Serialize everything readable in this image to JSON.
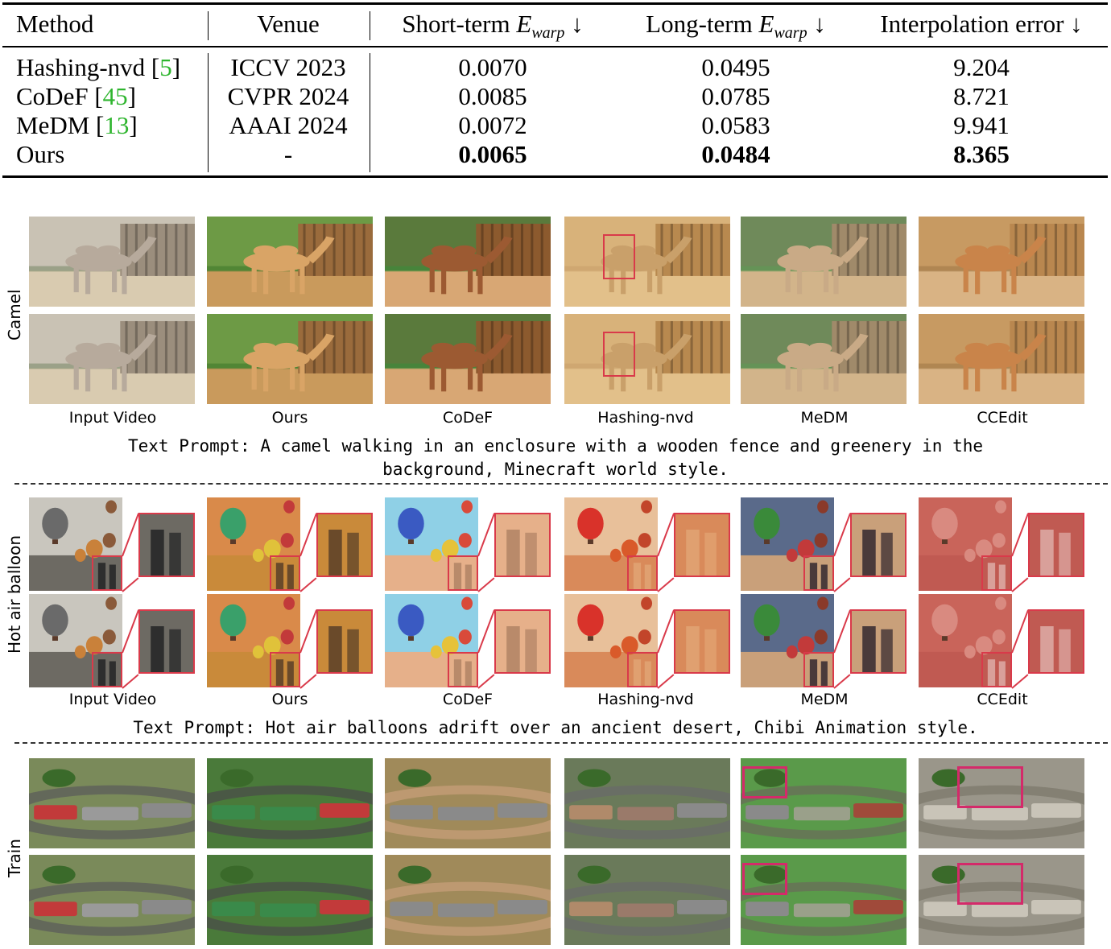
{
  "table": {
    "headers": {
      "method": "Method",
      "venue": "Venue",
      "short_prefix": "Short-term ",
      "long_prefix": "Long-term ",
      "e_symbol": "E",
      "e_sub": "warp",
      "arrow": "↓",
      "interp": "Interpolation error ↓"
    },
    "rows": [
      {
        "method": "Hashing-nvd [",
        "ref": "5",
        "venue": "ICCV 2023",
        "short": "0.0070",
        "long": "0.0495",
        "interp": "9.204"
      },
      {
        "method": "CoDeF [",
        "ref": "45",
        "venue": "CVPR 2024",
        "short": "0.0085",
        "long": "0.0785",
        "interp": "8.721"
      },
      {
        "method": "MeDM [",
        "ref": "13",
        "venue": "AAAI 2024",
        "short": "0.0072",
        "long": "0.0583",
        "interp": "9.941"
      },
      {
        "method": "Ours",
        "ref": "",
        "venue": "-",
        "short": "0.0065",
        "long": "0.0484",
        "interp": "8.365"
      }
    ],
    "ref_close": "]"
  },
  "figure": {
    "column_labels": [
      "Input Video",
      "Ours",
      "CoDeF",
      "Hashing-nvd",
      "MeDM",
      "CCEdit"
    ],
    "rows": [
      {
        "label": "Camel",
        "prompt_line1": "Text Prompt: A camel walking in an enclosure with a wooden fence and greenery in the",
        "prompt_line2": "background, Minecraft world style."
      },
      {
        "label": "Hot air balloon",
        "prompt_line1": "Text Prompt: Hot air balloons adrift over an ancient desert, Chibi Animation style.",
        "prompt_line2": ""
      },
      {
        "label": "Train",
        "prompt_line1": "",
        "prompt_line2": ""
      }
    ],
    "colors": {
      "highlight_box": "#d93a4a",
      "citation": "#2fb52f"
    }
  }
}
